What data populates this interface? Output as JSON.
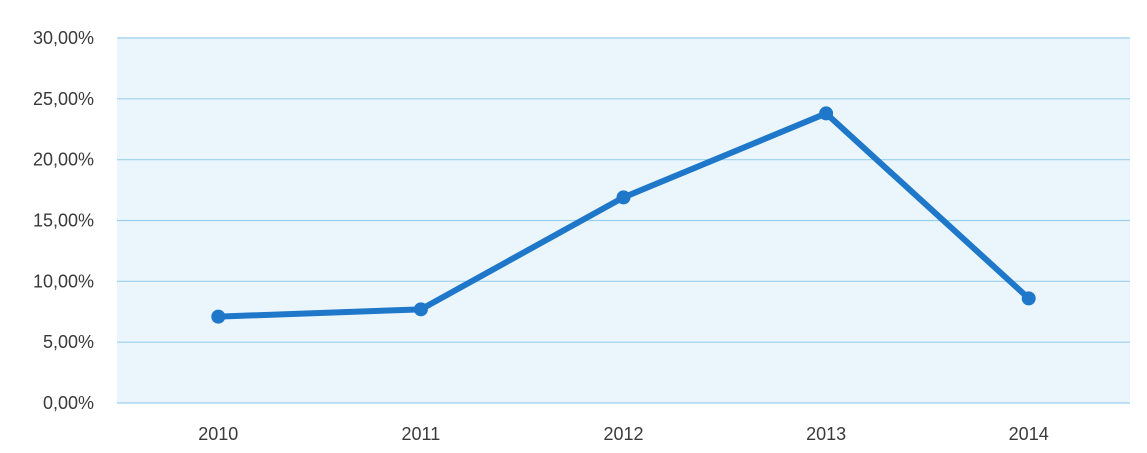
{
  "chart_data": {
    "type": "line",
    "title": "",
    "xlabel": "",
    "ylabel": "",
    "categories": [
      "2010",
      "2011",
      "2012",
      "2013",
      "2014"
    ],
    "series": [
      {
        "values": [
          7.1,
          7.7,
          16.9,
          23.8,
          8.6
        ],
        "color": "#1f77c9"
      }
    ],
    "ylim": [
      0,
      30
    ],
    "y_ticks": [
      0,
      5,
      10,
      15,
      20,
      25,
      30
    ],
    "y_tick_labels": [
      "0,00%",
      "5,00%",
      "10,00%",
      "15,00%",
      "20,00%",
      "25,00%",
      "30,00%"
    ],
    "grid": true,
    "legend": "none",
    "plot_background": "#eaf6fc",
    "grid_color": "#9cd0ef"
  }
}
